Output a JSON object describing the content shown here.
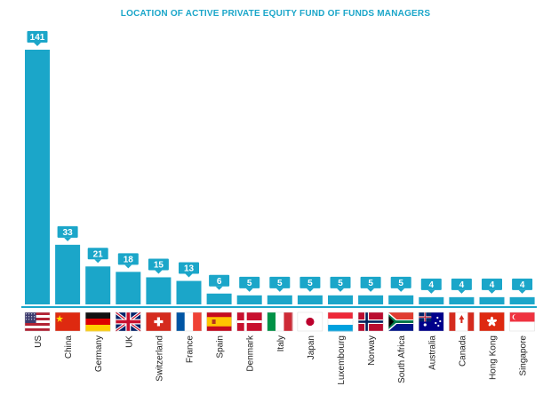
{
  "chart_data": {
    "type": "bar",
    "title": "LOCATION OF ACTIVE PRIVATE EQUITY FUND OF FUNDS MANAGERS",
    "categories": [
      "US",
      "China",
      "Germany",
      "UK",
      "Switzerland",
      "France",
      "Spain",
      "Denmark",
      "Italy",
      "Japan",
      "Luxembourg",
      "Norway",
      "South Africa",
      "Australia",
      "Canada",
      "Hong Kong",
      "Singapore"
    ],
    "values": [
      141,
      33,
      21,
      18,
      15,
      13,
      6,
      5,
      5,
      5,
      5,
      5,
      5,
      4,
      4,
      4,
      4
    ],
    "flags": [
      "us-flag-icon",
      "china-flag-icon",
      "germany-flag-icon",
      "uk-flag-icon",
      "switzerland-flag-icon",
      "france-flag-icon",
      "spain-flag-icon",
      "denmark-flag-icon",
      "italy-flag-icon",
      "japan-flag-icon",
      "luxembourg-flag-icon",
      "norway-flag-icon",
      "south-africa-flag-icon",
      "australia-flag-icon",
      "canada-flag-icon",
      "hong-kong-flag-icon",
      "singapore-flag-icon"
    ],
    "ylim": [
      0,
      141
    ],
    "grid": false,
    "legend": "none",
    "colors": {
      "bar": "#1ba6c9",
      "bar_dark": "#1590b0",
      "title": "#1ba6c9"
    }
  }
}
